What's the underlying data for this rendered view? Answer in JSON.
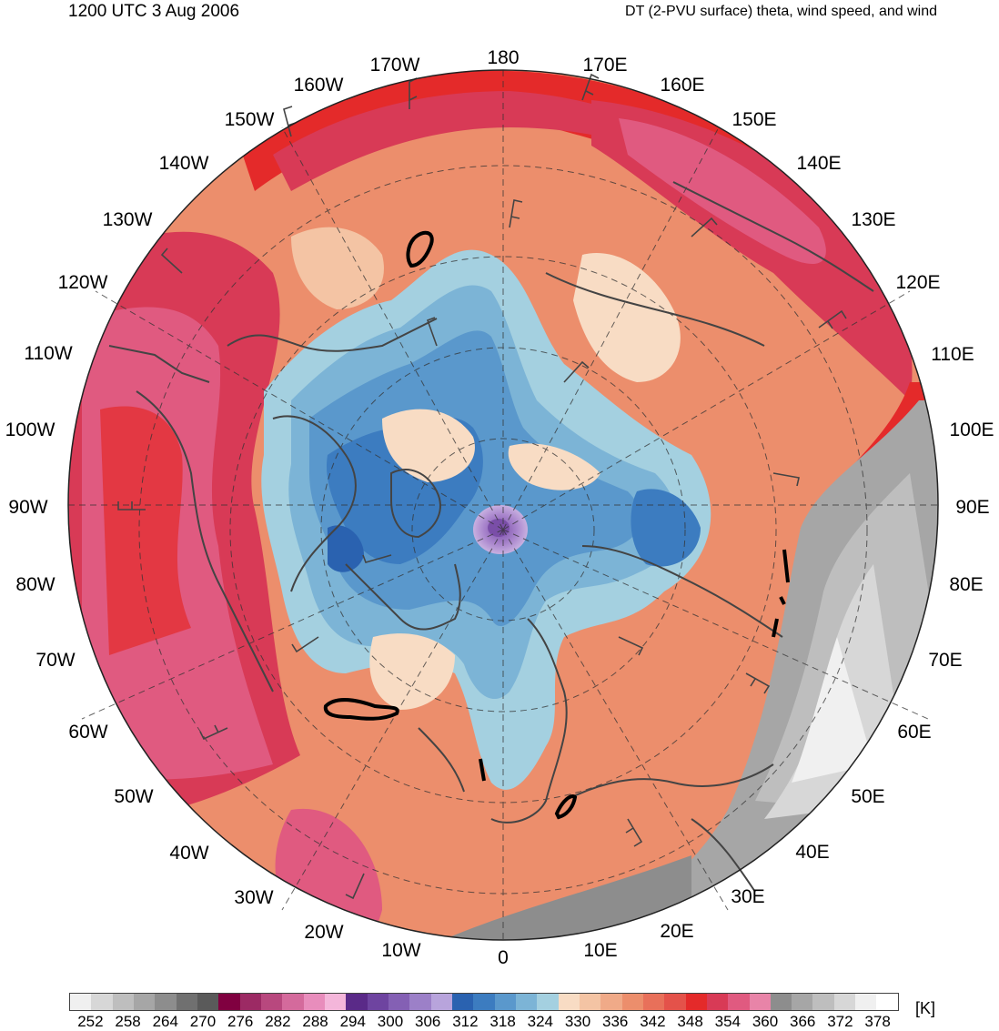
{
  "header": {
    "valid_time": "1200 UTC 3 Aug 2006",
    "product": "DT (2-PVU surface) theta, wind speed, and wind"
  },
  "map": {
    "projection": "north-polar-stereographic",
    "longitude_labels": [
      "180",
      "170E",
      "160E",
      "150E",
      "140E",
      "130E",
      "120E",
      "110E",
      "100E",
      "90E",
      "80E",
      "70E",
      "60E",
      "50E",
      "40E",
      "30E",
      "20E",
      "10E",
      "0",
      "10W",
      "20W",
      "30W",
      "40W",
      "50W",
      "60W",
      "70W",
      "80W",
      "90W",
      "100W",
      "110W",
      "120W",
      "130W",
      "140W",
      "150W",
      "160W",
      "170W"
    ],
    "field": "potential temperature on the dynamic tropopause",
    "features": [
      "coastlines",
      "country borders",
      "lat-lon grid",
      "wind barbs",
      "wind speed contours"
    ]
  },
  "colorbar": {
    "unit": "[K]",
    "tick_labels": [
      "252",
      "258",
      "264",
      "270",
      "276",
      "282",
      "288",
      "294",
      "300",
      "306",
      "312",
      "318",
      "324",
      "330",
      "336",
      "342",
      "348",
      "354",
      "360",
      "366",
      "372",
      "378"
    ],
    "colors": [
      "#f0f0f0",
      "#d7d7d7",
      "#bebebe",
      "#a6a6a6",
      "#8d8d8d",
      "#707070",
      "#5a5a5a",
      "#800040",
      "#9c2a64",
      "#b8487e",
      "#d46a9c",
      "#e88dbc",
      "#f4b6da",
      "#5a2a88",
      "#6e44a0",
      "#8460b4",
      "#9c80c8",
      "#b8a4dc",
      "#2a62b0",
      "#3c7cc0",
      "#5a98cc",
      "#7cb4d6",
      "#a4d0e0",
      "#f8dcc4",
      "#f4c4a4",
      "#f0aa88",
      "#ec8e6c",
      "#e8705a",
      "#e4524a",
      "#e42a2a",
      "#d83a56",
      "#e05a80",
      "#e884a8",
      "#8d8d8d",
      "#a6a6a6",
      "#bebebe",
      "#d7d7d7",
      "#f0f0f0",
      "#ffffff"
    ]
  }
}
